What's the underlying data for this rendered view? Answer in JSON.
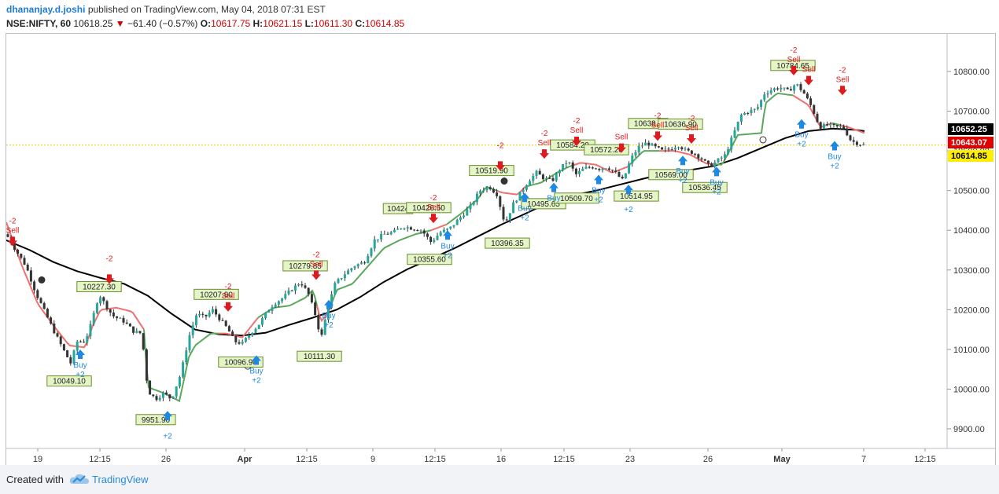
{
  "header": {
    "author": "dhananjay.d.joshi",
    "published": "published on TradingView.com, May 04, 2018 07:31 EST",
    "symbol": "NSE:NIFTY, 60",
    "last": "10618.25",
    "change": "−61.40 (−0.57%)",
    "open_label": "O:",
    "open": "10617.75",
    "high_label": "H:",
    "high": "10621.15",
    "low_label": "L:",
    "low": "10611.30",
    "close_label": "C:",
    "close": "10614.85"
  },
  "footer": {
    "created": "Created with",
    "brand": "TradingView",
    "logo_icon": "tradingview-cloud-icon"
  },
  "colors": {
    "up": "#26a69a",
    "down": "#333333",
    "ema": "#000000",
    "trail_up": "#5aa85a",
    "trail_down": "#f07070",
    "sell": "#e0191d",
    "buy": "#1e88e5",
    "label_bg": "#e6f5c8",
    "label_border": "#6a8f2e"
  },
  "chart_data": {
    "type": "candlestick",
    "y_ticks": [
      9900,
      10000,
      10100,
      10200,
      10300,
      10400,
      10500,
      10600,
      10700,
      10800
    ],
    "y_tick_labels": [
      "9900.00",
      "10000.00",
      "10100.00",
      "10200.00",
      "10300.00",
      "10400.00",
      "10500.00",
      "10600.00",
      "10700.00",
      "10800.00"
    ],
    "ylim": [
      9860,
      10850
    ],
    "x_ticks": [
      "19",
      "12:15",
      "26",
      "Apr",
      "12:15",
      "9",
      "12:15",
      "16",
      "12:15",
      "23",
      "26",
      "May",
      "7",
      "12:15"
    ],
    "price_badges": [
      {
        "value": "10652.25",
        "y": 10652.25,
        "bg": "#000000",
        "fg": "#ffffff"
      },
      {
        "value": "10643.07",
        "y": 10643.07,
        "bg": "#e00000",
        "fg": "#ffffff"
      },
      {
        "value": "10614.85",
        "y": 10614.85,
        "bg": "#ffee00",
        "fg": "#000000"
      }
    ],
    "last_price_line": 10614.85,
    "level_labels": [
      {
        "text": "10049.10",
        "x": 80,
        "y": 10049.1,
        "pos": "below"
      },
      {
        "text": "10227.30",
        "x": 118,
        "y": 10227.3,
        "pos": "above"
      },
      {
        "text": "9951.90",
        "x": 190,
        "y": 9951.9,
        "pos": "below"
      },
      {
        "text": "10207.90",
        "x": 267,
        "y": 10207.9,
        "pos": "above"
      },
      {
        "text": "10096.90",
        "x": 298,
        "y": 10096.9,
        "pos": "below"
      },
      {
        "text": "10279.85",
        "x": 380,
        "y": 10279.85,
        "pos": "above"
      },
      {
        "text": "10111.30",
        "x": 398,
        "y": 10111.3,
        "pos": "below"
      },
      {
        "text": "10424",
        "x": 498,
        "y": 10424,
        "pos": "above"
      },
      {
        "text": "10426.50",
        "x": 537,
        "y": 10426.5,
        "pos": "above"
      },
      {
        "text": "10355.60",
        "x": 538,
        "y": 10355.6,
        "pos": "below"
      },
      {
        "text": "10519.90",
        "x": 617,
        "y": 10519.9,
        "pos": "above"
      },
      {
        "text": "10396.35",
        "x": 637,
        "y": 10396.35,
        "pos": "below"
      },
      {
        "text": "10495.65",
        "x": 683,
        "y": 10495.65,
        "pos": "below"
      },
      {
        "text": "10584.20",
        "x": 720,
        "y": 10584.2,
        "pos": "above"
      },
      {
        "text": "10509.70",
        "x": 725,
        "y": 10509.7,
        "pos": "below"
      },
      {
        "text": "10572.20",
        "x": 763,
        "y": 10572.2,
        "pos": "above"
      },
      {
        "text": "10514.95",
        "x": 801,
        "y": 10514.95,
        "pos": "below"
      },
      {
        "text": "10638.3",
        "x": 816,
        "y": 10638.3,
        "pos": "above"
      },
      {
        "text": "10636.90",
        "x": 857,
        "y": 10636.9,
        "pos": "above"
      },
      {
        "text": "10569.00",
        "x": 845,
        "y": 10569.0,
        "pos": "below"
      },
      {
        "text": "10536.45",
        "x": 888,
        "y": 10536.45,
        "pos": "below"
      },
      {
        "text": "10784.65",
        "x": 1000,
        "y": 10784.65,
        "pos": "above"
      }
    ],
    "signals": [
      {
        "type": "sell",
        "x": 8,
        "y": 10370,
        "label": "Sell",
        "value": "-2"
      },
      {
        "type": "buy",
        "x": 94,
        "y": 10090,
        "label": "Buy",
        "value": "+2"
      },
      {
        "type": "sell",
        "x": 131,
        "y": 10275,
        "label": "",
        "value": "-2"
      },
      {
        "type": "buy",
        "x": 205,
        "y": 9935,
        "label": "",
        "value": "+2"
      },
      {
        "type": "sell",
        "x": 282,
        "y": 10205,
        "label": "Sell",
        "value": "-2"
      },
      {
        "type": "buy",
        "x": 318,
        "y": 10075,
        "label": "Buy",
        "value": "+2"
      },
      {
        "type": "sell",
        "x": 394,
        "y": 10285,
        "label": "Sell",
        "value": "-2"
      },
      {
        "type": "buy",
        "x": 410,
        "y": 10215,
        "label": "Buy",
        "value": "+2"
      },
      {
        "type": "sell",
        "x": 543,
        "y": 10428,
        "label": "Sell",
        "value": "-2"
      },
      {
        "type": "buy",
        "x": 561,
        "y": 10390,
        "label": "Buy",
        "value": "+2"
      },
      {
        "type": "sell",
        "x": 628,
        "y": 10560,
        "label": "",
        "value": "-2"
      },
      {
        "type": "buy",
        "x": 659,
        "y": 10485,
        "label": "Buy",
        "value": "+2"
      },
      {
        "type": "sell",
        "x": 684,
        "y": 10590,
        "label": "Sell",
        "value": "-2"
      },
      {
        "type": "buy",
        "x": 696,
        "y": 10510,
        "label": "Buy",
        "value": ""
      },
      {
        "type": "sell",
        "x": 725,
        "y": 10622,
        "label": "Sell",
        "value": "-2"
      },
      {
        "type": "buy",
        "x": 753,
        "y": 10530,
        "label": "Buy",
        "value": "+2"
      },
      {
        "type": "sell",
        "x": 782,
        "y": 10605,
        "label": "Sell",
        "value": ""
      },
      {
        "type": "buy",
        "x": 791,
        "y": 10505,
        "label": "",
        "value": "+2"
      },
      {
        "type": "sell",
        "x": 828,
        "y": 10635,
        "label": "Sell",
        "value": "-2"
      },
      {
        "type": "buy",
        "x": 860,
        "y": 10578,
        "label": "Buy",
        "value": "+2"
      },
      {
        "type": "sell",
        "x": 871,
        "y": 10628,
        "label": "Sell",
        "value": "-2"
      },
      {
        "type": "buy",
        "x": 903,
        "y": 10550,
        "label": "Buy",
        "value": "+2"
      },
      {
        "type": "sell",
        "x": 1001,
        "y": 10800,
        "label": "Sell",
        "value": "-2"
      },
      {
        "type": "sell",
        "x": 1020,
        "y": 10775,
        "label": "Sell",
        "value": ""
      },
      {
        "type": "buy",
        "x": 1011,
        "y": 10670,
        "label": "Buy",
        "value": "+2"
      },
      {
        "type": "buy",
        "x": 1053,
        "y": 10615,
        "label": "Buy",
        "value": "+2"
      },
      {
        "type": "sell",
        "x": 1063,
        "y": 10750,
        "label": "Sell",
        "value": "-2"
      }
    ],
    "markers": [
      {
        "x": 45,
        "y": 10275,
        "fill": "#333333"
      },
      {
        "x": 307,
        "y": 10058,
        "fill": "#ffffff"
      },
      {
        "x": 633,
        "y": 10524,
        "fill": "#333333"
      },
      {
        "x": 962,
        "y": 10628,
        "fill": "#ffffff"
      }
    ],
    "ema_points": [
      [
        0,
        10375
      ],
      [
        30,
        10350
      ],
      [
        60,
        10320
      ],
      [
        90,
        10297
      ],
      [
        120,
        10280
      ],
      [
        150,
        10265
      ],
      [
        180,
        10235
      ],
      [
        210,
        10190
      ],
      [
        240,
        10150
      ],
      [
        270,
        10138
      ],
      [
        300,
        10135
      ],
      [
        330,
        10142
      ],
      [
        360,
        10162
      ],
      [
        390,
        10180
      ],
      [
        420,
        10200
      ],
      [
        450,
        10232
      ],
      [
        480,
        10270
      ],
      [
        510,
        10302
      ],
      [
        540,
        10328
      ],
      [
        570,
        10355
      ],
      [
        600,
        10385
      ],
      [
        630,
        10415
      ],
      [
        660,
        10442
      ],
      [
        690,
        10470
      ],
      [
        720,
        10488
      ],
      [
        750,
        10500
      ],
      [
        780,
        10515
      ],
      [
        810,
        10530
      ],
      [
        840,
        10544
      ],
      [
        870,
        10552
      ],
      [
        900,
        10562
      ],
      [
        930,
        10582
      ],
      [
        960,
        10607
      ],
      [
        990,
        10632
      ],
      [
        1020,
        10650
      ],
      [
        1050,
        10656
      ],
      [
        1080,
        10653
      ],
      [
        1091,
        10650
      ]
    ],
    "trail_points": [
      [
        0,
        10420
      ],
      [
        20,
        10310
      ],
      [
        40,
        10215
      ],
      [
        60,
        10160
      ],
      [
        80,
        10110
      ],
      [
        100,
        10105
      ],
      [
        110,
        10160
      ],
      [
        120,
        10200
      ],
      [
        140,
        10205
      ],
      [
        160,
        10195
      ],
      [
        175,
        10150
      ],
      [
        180,
        10005
      ],
      [
        200,
        9990
      ],
      [
        220,
        9970
      ],
      [
        232,
        10080
      ],
      [
        240,
        10110
      ],
      [
        260,
        10140
      ],
      [
        280,
        10140
      ],
      [
        300,
        10130
      ],
      [
        320,
        10180
      ],
      [
        340,
        10205
      ],
      [
        360,
        10210
      ],
      [
        380,
        10230
      ],
      [
        390,
        10250
      ],
      [
        400,
        10170
      ],
      [
        410,
        10195
      ],
      [
        420,
        10250
      ],
      [
        440,
        10265
      ],
      [
        460,
        10310
      ],
      [
        480,
        10355
      ],
      [
        500,
        10375
      ],
      [
        520,
        10390
      ],
      [
        540,
        10400
      ],
      [
        560,
        10415
      ],
      [
        580,
        10445
      ],
      [
        600,
        10480
      ],
      [
        610,
        10510
      ],
      [
        630,
        10495
      ],
      [
        650,
        10490
      ],
      [
        660,
        10510
      ],
      [
        680,
        10520
      ],
      [
        700,
        10545
      ],
      [
        715,
        10560
      ],
      [
        730,
        10570
      ],
      [
        750,
        10565
      ],
      [
        770,
        10545
      ],
      [
        790,
        10560
      ],
      [
        810,
        10600
      ],
      [
        830,
        10600
      ],
      [
        850,
        10600
      ],
      [
        870,
        10590
      ],
      [
        890,
        10568
      ],
      [
        910,
        10565
      ],
      [
        930,
        10640
      ],
      [
        960,
        10645
      ],
      [
        965,
        10720
      ],
      [
        980,
        10745
      ],
      [
        1000,
        10740
      ],
      [
        1020,
        10715
      ],
      [
        1035,
        10660
      ],
      [
        1050,
        10670
      ],
      [
        1070,
        10660
      ],
      [
        1091,
        10645
      ]
    ],
    "trail_segments": [
      {
        "from": 0,
        "to": 110,
        "dir": "down"
      },
      {
        "from": 110,
        "to": 175,
        "dir": "down"
      },
      {
        "from": 175,
        "to": 270,
        "dir": "up"
      },
      {
        "from": 270,
        "to": 320,
        "dir": "down"
      },
      {
        "from": 320,
        "to": 395,
        "dir": "up"
      },
      {
        "from": 395,
        "to": 415,
        "dir": "down"
      },
      {
        "from": 415,
        "to": 540,
        "dir": "up"
      },
      {
        "from": 540,
        "to": 560,
        "dir": "down"
      },
      {
        "from": 560,
        "to": 625,
        "dir": "up"
      },
      {
        "from": 625,
        "to": 660,
        "dir": "down"
      },
      {
        "from": 660,
        "to": 720,
        "dir": "up"
      },
      {
        "from": 720,
        "to": 790,
        "dir": "down"
      },
      {
        "from": 790,
        "to": 830,
        "dir": "up"
      },
      {
        "from": 830,
        "to": 900,
        "dir": "down"
      },
      {
        "from": 900,
        "to": 1000,
        "dir": "up"
      },
      {
        "from": 1000,
        "to": 1050,
        "dir": "down"
      },
      {
        "from": 1050,
        "to": 1060,
        "dir": "up"
      },
      {
        "from": 1060,
        "to": 1091,
        "dir": "down"
      }
    ],
    "close_path": [
      [
        0,
        10390
      ],
      [
        12,
        10350
      ],
      [
        25,
        10310
      ],
      [
        38,
        10240
      ],
      [
        50,
        10190
      ],
      [
        62,
        10140
      ],
      [
        75,
        10090
      ],
      [
        82,
        10065
      ],
      [
        90,
        10120
      ],
      [
        100,
        10120
      ],
      [
        108,
        10165
      ],
      [
        118,
        10240
      ],
      [
        125,
        10215
      ],
      [
        135,
        10185
      ],
      [
        150,
        10170
      ],
      [
        162,
        10145
      ],
      [
        172,
        10140
      ],
      [
        180,
        9995
      ],
      [
        190,
        9975
      ],
      [
        200,
        9990
      ],
      [
        210,
        9975
      ],
      [
        222,
        10040
      ],
      [
        232,
        10130
      ],
      [
        242,
        10190
      ],
      [
        252,
        10180
      ],
      [
        262,
        10200
      ],
      [
        272,
        10175
      ],
      [
        282,
        10150
      ],
      [
        290,
        10120
      ],
      [
        300,
        10115
      ],
      [
        310,
        10140
      ],
      [
        320,
        10160
      ],
      [
        330,
        10190
      ],
      [
        340,
        10215
      ],
      [
        352,
        10230
      ],
      [
        362,
        10250
      ],
      [
        374,
        10270
      ],
      [
        384,
        10240
      ],
      [
        394,
        10180
      ],
      [
        400,
        10125
      ],
      [
        408,
        10200
      ],
      [
        418,
        10265
      ],
      [
        430,
        10290
      ],
      [
        442,
        10310
      ],
      [
        455,
        10320
      ],
      [
        468,
        10375
      ],
      [
        480,
        10390
      ],
      [
        492,
        10395
      ],
      [
        504,
        10410
      ],
      [
        516,
        10405
      ],
      [
        528,
        10400
      ],
      [
        540,
        10370
      ],
      [
        552,
        10395
      ],
      [
        564,
        10405
      ],
      [
        576,
        10430
      ],
      [
        590,
        10460
      ],
      [
        602,
        10500
      ],
      [
        614,
        10510
      ],
      [
        624,
        10490
      ],
      [
        634,
        10415
      ],
      [
        644,
        10465
      ],
      [
        654,
        10495
      ],
      [
        664,
        10525
      ],
      [
        674,
        10545
      ],
      [
        684,
        10530
      ],
      [
        694,
        10525
      ],
      [
        704,
        10555
      ],
      [
        714,
        10575
      ],
      [
        724,
        10540
      ],
      [
        734,
        10555
      ],
      [
        744,
        10560
      ],
      [
        754,
        10555
      ],
      [
        764,
        10560
      ],
      [
        774,
        10545
      ],
      [
        784,
        10525
      ],
      [
        794,
        10580
      ],
      [
        804,
        10610
      ],
      [
        814,
        10620
      ],
      [
        824,
        10610
      ],
      [
        834,
        10600
      ],
      [
        844,
        10605
      ],
      [
        854,
        10615
      ],
      [
        864,
        10600
      ],
      [
        874,
        10595
      ],
      [
        884,
        10580
      ],
      [
        894,
        10560
      ],
      [
        904,
        10575
      ],
      [
        914,
        10590
      ],
      [
        924,
        10640
      ],
      [
        934,
        10690
      ],
      [
        944,
        10700
      ],
      [
        954,
        10705
      ],
      [
        964,
        10745
      ],
      [
        974,
        10755
      ],
      [
        984,
        10760
      ],
      [
        994,
        10750
      ],
      [
        1004,
        10770
      ],
      [
        1014,
        10745
      ],
      [
        1024,
        10710
      ],
      [
        1034,
        10660
      ],
      [
        1044,
        10665
      ],
      [
        1054,
        10660
      ],
      [
        1064,
        10660
      ],
      [
        1074,
        10625
      ],
      [
        1084,
        10618
      ],
      [
        1091,
        10615
      ]
    ]
  }
}
